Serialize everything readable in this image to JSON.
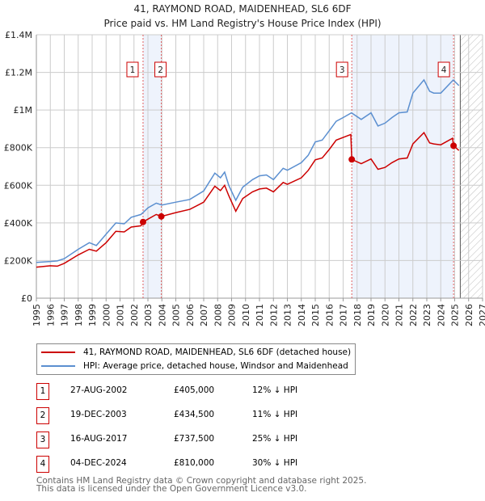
{
  "chart_data": {
    "type": "line",
    "title": "41, RAYMOND ROAD, MAIDENHEAD, SL6 6DF",
    "subtitle": "Price paid vs. HM Land Registry's House Price Index (HPI)",
    "xlim": [
      1995,
      2027
    ],
    "ylim": [
      0,
      1400000
    ],
    "x_ticks": [
      "1995",
      "1996",
      "1997",
      "1998",
      "1999",
      "2000",
      "2001",
      "2002",
      "2003",
      "2004",
      "2005",
      "2006",
      "2007",
      "2008",
      "2009",
      "2010",
      "2011",
      "2012",
      "2013",
      "2014",
      "2015",
      "2016",
      "2017",
      "2018",
      "2019",
      "2020",
      "2021",
      "2022",
      "2023",
      "2024",
      "2025",
      "2026",
      "2027"
    ],
    "y_ticks": [
      {
        "value": 0,
        "label": "£0"
      },
      {
        "value": 200000,
        "label": "£200K"
      },
      {
        "value": 400000,
        "label": "£400K"
      },
      {
        "value": 600000,
        "label": "£600K"
      },
      {
        "value": 800000,
        "label": "£800K"
      },
      {
        "value": 1000000,
        "label": "£1M"
      },
      {
        "value": 1200000,
        "label": "£1.2M"
      },
      {
        "value": 1400000,
        "label": "£1.4M"
      }
    ],
    "grid": true,
    "forecast_from": 2025.4,
    "shaded_ranges": [
      [
        2002.65,
        2003.96
      ],
      [
        2017.62,
        2024.92
      ]
    ],
    "series": [
      {
        "name": "41, RAYMOND ROAD, MAIDENHEAD, SL6 6DF (detached house)",
        "color": "#cc0000",
        "x": [
          1995,
          1996,
          1996.5,
          1997,
          1998,
          1998.8,
          1999.3,
          2000,
          2000.7,
          2001.3,
          2001.8,
          2002.5,
          2002.65,
          2003,
          2003.6,
          2003.96,
          2005,
          2006,
          2007,
          2007.8,
          2008.2,
          2008.5,
          2008.8,
          2009.3,
          2009.8,
          2010.5,
          2011,
          2011.5,
          2012,
          2012.7,
          2013,
          2014,
          2014.5,
          2015,
          2015.5,
          2016,
          2016.5,
          2017.55,
          2017.62,
          2018.3,
          2019,
          2019.5,
          2020,
          2020.5,
          2021,
          2021.6,
          2022,
          2022.8,
          2023.2,
          2023.5,
          2024,
          2024.85,
          2024.92,
          2025.3
        ],
        "values": [
          165000,
          172000,
          170000,
          185000,
          230000,
          260000,
          250000,
          295000,
          355000,
          352000,
          378000,
          385000,
          405000,
          420000,
          445000,
          434500,
          455000,
          472000,
          510000,
          595000,
          572000,
          600000,
          545000,
          462000,
          530000,
          565000,
          580000,
          585000,
          565000,
          615000,
          605000,
          640000,
          680000,
          735000,
          745000,
          790000,
          840000,
          870000,
          737500,
          715000,
          740000,
          685000,
          695000,
          720000,
          740000,
          745000,
          820000,
          880000,
          825000,
          820000,
          815000,
          850000,
          810000,
          785000
        ]
      },
      {
        "name": "HPI: Average price, detached house, Windsor and Maidenhead",
        "color": "#5b8fd0",
        "x": [
          1995,
          1996,
          1996.5,
          1997,
          1998,
          1998.8,
          1999.3,
          2000,
          2000.7,
          2001.3,
          2001.8,
          2002.5,
          2003,
          2003.6,
          2004,
          2005,
          2006,
          2007,
          2007.8,
          2008.2,
          2008.5,
          2008.8,
          2009.3,
          2009.8,
          2010.5,
          2011,
          2011.5,
          2012,
          2012.7,
          2013,
          2014,
          2014.5,
          2015,
          2015.5,
          2016,
          2016.5,
          2017,
          2017.6,
          2018.3,
          2019,
          2019.5,
          2020,
          2020.5,
          2021,
          2021.6,
          2022,
          2022.8,
          2023.2,
          2023.5,
          2024,
          2024.9,
          2025.3
        ],
        "values": [
          190000,
          195000,
          198000,
          210000,
          260000,
          295000,
          280000,
          340000,
          400000,
          395000,
          430000,
          445000,
          480000,
          505000,
          495000,
          510000,
          525000,
          570000,
          665000,
          640000,
          670000,
          600000,
          520000,
          590000,
          630000,
          650000,
          655000,
          630000,
          690000,
          680000,
          720000,
          760000,
          830000,
          840000,
          890000,
          940000,
          960000,
          985000,
          950000,
          985000,
          915000,
          930000,
          960000,
          985000,
          990000,
          1090000,
          1160000,
          1100000,
          1090000,
          1090000,
          1160000,
          1130000
        ]
      }
    ],
    "sales": [
      {
        "id": "1",
        "x": 2002.65,
        "value": 405000
      },
      {
        "id": "2",
        "x": 2003.96,
        "value": 434500
      },
      {
        "id": "3",
        "x": 2017.62,
        "value": 737500
      },
      {
        "id": "4",
        "x": 2024.92,
        "value": 810000
      }
    ]
  },
  "legend": {
    "property": "41, RAYMOND ROAD, MAIDENHEAD, SL6 6DF (detached house)",
    "hpi": "HPI: Average price, detached house, Windsor and Maidenhead"
  },
  "transactions": [
    {
      "id": "1",
      "date": "27-AUG-2002",
      "price": "£405,000",
      "diff": "12% ↓ HPI"
    },
    {
      "id": "2",
      "date": "19-DEC-2003",
      "price": "£434,500",
      "diff": "11% ↓ HPI"
    },
    {
      "id": "3",
      "date": "16-AUG-2017",
      "price": "£737,500",
      "diff": "25% ↓ HPI"
    },
    {
      "id": "4",
      "date": "04-DEC-2024",
      "price": "£810,000",
      "diff": "30% ↓ HPI"
    }
  ],
  "footer": {
    "line1": "Contains HM Land Registry data © Crown copyright and database right 2025.",
    "line2": "This data is licensed under the Open Government Licence v3.0."
  }
}
